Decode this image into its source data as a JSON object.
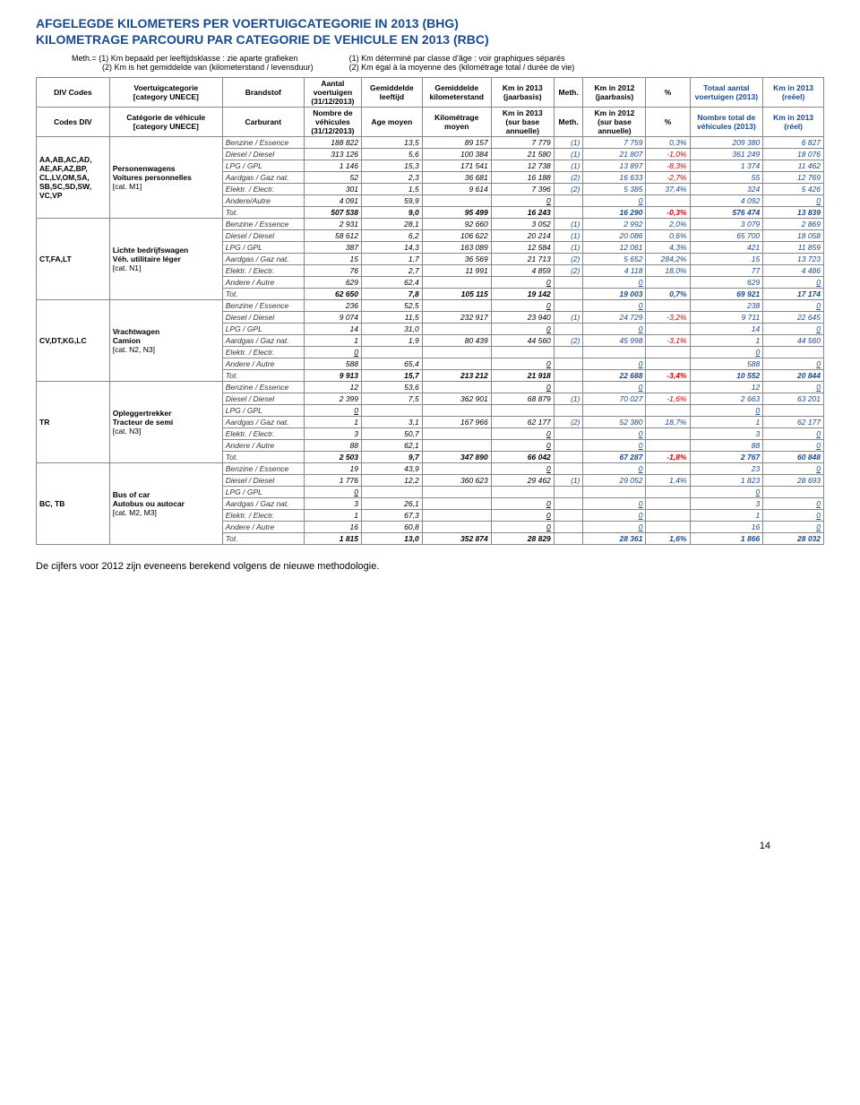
{
  "title_nl": "AFGELEGDE KILOMETERS PER VOERTUIGCATEGORIE IN 2013 (BHG)",
  "title_fr": "KILOMETRAGE PARCOURU PAR CATEGORIE DE VEHICULE EN 2013 (RBC)",
  "meth_nl_1": "Meth.= (1) Km bepaald per leeftijdsklasse : zie aparte grafieken",
  "meth_nl_2": "(2) Km is het gemiddelde van (kilometerstand / levensduur)",
  "meth_fr_1": "(1) Km déterminé par classe d'âge : voir graphiques séparés",
  "meth_fr_2": "(2) Km égal à la moyenne des (kilométrage total / durée de vie)",
  "headers_nl": [
    "DIV Codes",
    "Voertuigcategorie\n[category UNECE]",
    "Brandstof",
    "Aantal voertuigen (31/12/2013)",
    "Gemiddelde leeftijd",
    "Gemiddelde kilometerstand",
    "Km in 2013 (jaarbasis)",
    "Meth.",
    "Km in 2012 (jaarbasis)",
    "%",
    "Totaal aantal voertuigen (2013)",
    "Km in 2013 (reëel)"
  ],
  "headers_fr": [
    "Codes DIV",
    "Catégorie de véhicule\n[category UNECE]",
    "Carburant",
    "Nombre de véhicules (31/12/2013)",
    "Age moyen",
    "Kilométrage moyen",
    "Km in 2013 (sur base annuelle)",
    "Meth.",
    "Km in 2012 (sur base annuelle)",
    "%",
    "Nombre total de véhicules (2013)",
    "Km in 2013 (réel)"
  ],
  "groups": [
    {
      "codes": [
        "AA,AB,AC,AD,",
        "AE,AF,AZ,BP,",
        "CL,LV,OM,SA,",
        "SB,SC,SD,SW,",
        "VC,VP"
      ],
      "cats": [
        "Personenwagens",
        "Voitures personnelles",
        "[cat. M1]"
      ],
      "rows": [
        [
          "Benzine / Essence",
          "188 822",
          "13,5",
          "89 157",
          "7 779",
          "(1)",
          "7 759",
          "0,3%",
          "209 380",
          "6 827"
        ],
        [
          "Diesel / Diesel",
          "313 126",
          "5,6",
          "100 384",
          "21 580",
          "(1)",
          "21 807",
          "-1,0%",
          "361 249",
          "18 076"
        ],
        [
          "LPG / GPL",
          "1 146",
          "15,3",
          "171 541",
          "12 738",
          "(1)",
          "13 897",
          "-8,3%",
          "1 374",
          "11 462"
        ],
        [
          "Aardgas / Gaz nat.",
          "52",
          "2,3",
          "36 681",
          "16 188",
          "(2)",
          "16 633",
          "-2,7%",
          "55",
          "12 769"
        ],
        [
          "Elektr. / Electr.",
          "301",
          "1,5",
          "9 614",
          "7 396",
          "(2)",
          "5 385",
          "37,4%",
          "324",
          "5 426"
        ],
        [
          "Andere/Autre",
          "4 091",
          "59,9",
          "",
          "0",
          "",
          "0",
          "",
          "4 092",
          "0"
        ]
      ],
      "tot": [
        "507 538",
        "9,0",
        "95 499",
        "16 243",
        "",
        "16 290",
        "-0,3%",
        "576 474",
        "13 839"
      ]
    },
    {
      "codes": [
        "CT,FA,LT"
      ],
      "cats": [
        "Lichte bedrijfswagen",
        "Véh. utilitaire léger",
        "[cat. N1]"
      ],
      "rows": [
        [
          "Benzine / Essence",
          "2 931",
          "28,1",
          "92 660",
          "3 052",
          "(1)",
          "2 992",
          "2,0%",
          "3 079",
          "2 869"
        ],
        [
          "Diesel / Diesel",
          "58 612",
          "6,2",
          "106 622",
          "20 214",
          "(1)",
          "20 086",
          "0,6%",
          "65 700",
          "18 058"
        ],
        [
          "LPG / GPL",
          "387",
          "14,3",
          "163 089",
          "12 584",
          "(1)",
          "12 061",
          "4,3%",
          "421",
          "11 859"
        ],
        [
          "Aardgas / Gaz nat.",
          "15",
          "1,7",
          "36 569",
          "21 713",
          "(2)",
          "5 652",
          "284,2%",
          "15",
          "13 723"
        ],
        [
          "Elektr. / Electr.",
          "76",
          "2,7",
          "11 991",
          "4 859",
          "(2)",
          "4 118",
          "18,0%",
          "77",
          "4 486"
        ],
        [
          "Andere / Autre",
          "629",
          "62,4",
          "",
          "0",
          "",
          "0",
          "",
          "629",
          "0"
        ]
      ],
      "tot": [
        "62 650",
        "7,8",
        "105 115",
        "19 142",
        "",
        "19 003",
        "0,7%",
        "69 921",
        "17 174"
      ]
    },
    {
      "codes": [
        "CV,DT,KG,LC"
      ],
      "cats": [
        "Vrachtwagen",
        "Camion",
        "[cat. N2, N3]"
      ],
      "rows": [
        [
          "Benzine / Essence",
          "236",
          "52,5",
          "",
          "0",
          "",
          "0",
          "",
          "238",
          "0"
        ],
        [
          "Diesel / Diesel",
          "9 074",
          "11,5",
          "232 917",
          "23 940",
          "(1)",
          "24 729",
          "-3,2%",
          "9 711",
          "22 645"
        ],
        [
          "LPG / GPL",
          "14",
          "31,0",
          "",
          "0",
          "",
          "0",
          "",
          "14",
          "0"
        ],
        [
          "Aardgas / Gaz nat.",
          "1",
          "1,9",
          "80 439",
          "44 560",
          "(2)",
          "45 998",
          "-3,1%",
          "1",
          "44 560"
        ],
        [
          "Elektr. / Electr.",
          "0",
          "",
          "",
          "",
          "",
          "",
          "",
          "0",
          ""
        ],
        [
          "Andere / Autre",
          "588",
          "65,4",
          "",
          "0",
          "",
          "0",
          "",
          "588",
          "0"
        ]
      ],
      "tot": [
        "9 913",
        "15,7",
        "213 212",
        "21 918",
        "",
        "22 688",
        "-3,4%",
        "10 552",
        "20 844"
      ]
    },
    {
      "codes": [
        "TR"
      ],
      "cats": [
        "Opleggertrekker",
        "Tracteur de semi",
        "[cat. N3]"
      ],
      "rows": [
        [
          "Benzine / Essence",
          "12",
          "53,6",
          "",
          "0",
          "",
          "0",
          "",
          "12",
          "0"
        ],
        [
          "Diesel / Diesel",
          "2 399",
          "7,5",
          "362 901",
          "68 879",
          "(1)",
          "70 027",
          "-1,6%",
          "2 663",
          "63 201"
        ],
        [
          "LPG / GPL",
          "0",
          "",
          "",
          "",
          "",
          "",
          "",
          "0",
          ""
        ],
        [
          "Aardgas / Gaz nat.",
          "1",
          "3,1",
          "167 966",
          "62 177",
          "(2)",
          "52 380",
          "18,7%",
          "1",
          "62 177"
        ],
        [
          "Elektr. / Electr.",
          "3",
          "50,7",
          "",
          "0",
          "",
          "0",
          "",
          "3",
          "0"
        ],
        [
          "Andere / Autre",
          "88",
          "62,1",
          "",
          "0",
          "",
          "0",
          "",
          "88",
          "0"
        ]
      ],
      "tot": [
        "2 503",
        "9,7",
        "347 890",
        "66 042",
        "",
        "67 287",
        "-1,8%",
        "2 767",
        "60 848"
      ]
    },
    {
      "codes": [
        "BC, TB"
      ],
      "cats": [
        "Bus of car",
        "Autobus ou autocar",
        "[cat. M2, M3]"
      ],
      "rows": [
        [
          "Benzine / Essence",
          "19",
          "43,9",
          "",
          "0",
          "",
          "0",
          "",
          "23",
          "0"
        ],
        [
          "Diesel / Diesel",
          "1 776",
          "12,2",
          "360 623",
          "29 462",
          "(1)",
          "29 052",
          "1,4%",
          "1 823",
          "28 693"
        ],
        [
          "LPG / GPL",
          "0",
          "",
          "",
          "",
          "",
          "",
          "",
          "0",
          ""
        ],
        [
          "Aardgas / Gaz nat.",
          "3",
          "26,1",
          "",
          "0",
          "",
          "0",
          "",
          "3",
          "0"
        ],
        [
          "Elektr. / Electr.",
          "1",
          "67,3",
          "",
          "0",
          "",
          "0",
          "",
          "1",
          "0"
        ],
        [
          "Andere / Autre",
          "16",
          "60,8",
          "",
          "0",
          "",
          "0",
          "",
          "16",
          "0"
        ]
      ],
      "tot": [
        "1 815",
        "13,0",
        "352 874",
        "28 829",
        "",
        "28 361",
        "1,6%",
        "1 866",
        "28 032"
      ]
    }
  ],
  "footnote": "De cijfers voor 2012 zijn eveneens berekend volgens de nieuwe methodologie.",
  "page": "14"
}
